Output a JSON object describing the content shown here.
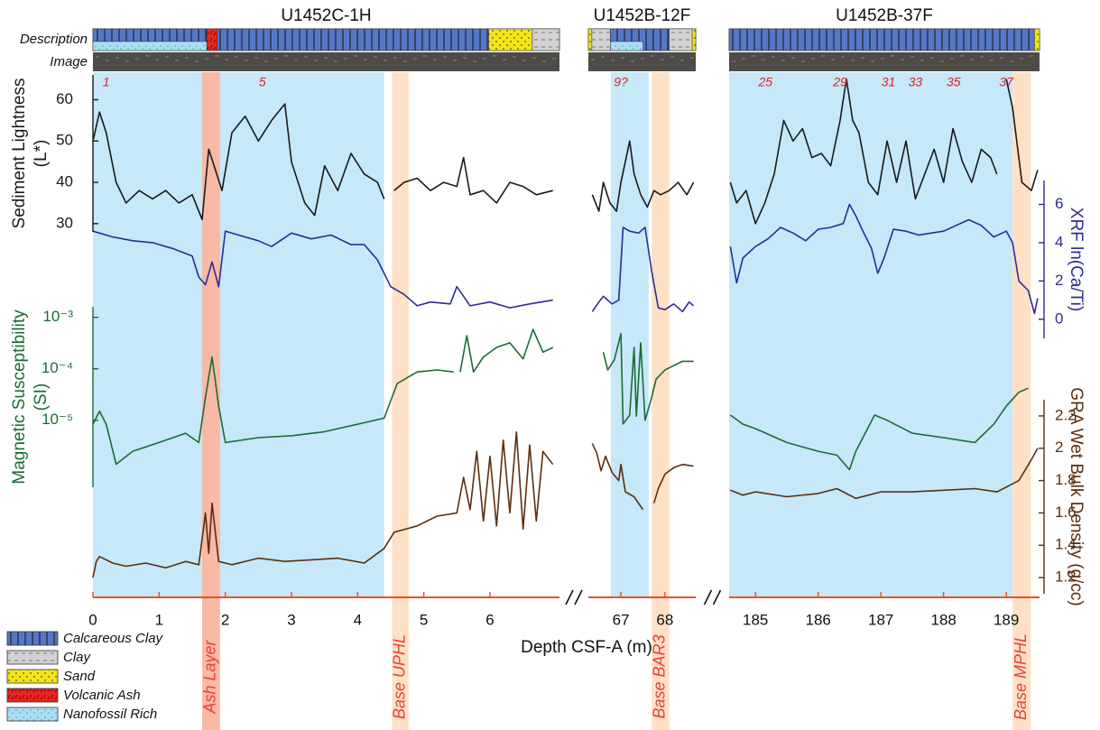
{
  "chart_data": {
    "type": "line",
    "x_label": "Depth CSF-A (m)",
    "strip_labels": [
      "Description",
      "Image"
    ],
    "segments": [
      {
        "title": "U1452C-1H",
        "xlim": [
          0,
          7.05
        ],
        "xticks": [
          0,
          1,
          2,
          3,
          4,
          5,
          6
        ]
      },
      {
        "title": "U1452B-12F",
        "xlim": [
          66.26,
          68.7
        ],
        "xticks": [
          67,
          68
        ]
      },
      {
        "title": "U1452B-37F",
        "xlim": [
          184.58,
          189.53
        ],
        "xticks": [
          185,
          186,
          187,
          188,
          189
        ]
      }
    ],
    "axes": [
      {
        "label": [
          "Sediment Lightness",
          "(L*)"
        ],
        "side": "left",
        "color": "#1a1a1a",
        "ylim": [
          28,
          66
        ],
        "yticks": [
          30,
          40,
          50,
          60
        ]
      },
      {
        "label": [
          "XRF ln(Ca/Ti)"
        ],
        "side": "right",
        "color": "#2b2d95",
        "ylim": [
          -1,
          7.25
        ],
        "yticks": [
          0,
          2,
          4,
          6
        ]
      },
      {
        "label": [
          "Magnetic Susceptibility",
          "(SI)"
        ],
        "side": "left",
        "color": "#1b6b35",
        "log": true,
        "ylim": [
          5e-07,
          0.0016
        ],
        "yticks": [
          {
            "value": 0.001,
            "label": "10⁻³"
          },
          {
            "value": 0.0001,
            "label": "10⁻⁴"
          },
          {
            "value": 1e-05,
            "label": "10⁻⁵"
          }
        ]
      },
      {
        "label": [
          "GRA Wet Bulk Density (g/cc)"
        ],
        "side": "right",
        "color": "#5a2e0f",
        "ylim": [
          1.1,
          2.3
        ],
        "yticks": [
          1.2,
          1.4,
          1.6,
          1.8,
          2,
          2.2
        ]
      }
    ],
    "series": [
      {
        "axis": 0,
        "segment": 0,
        "x": [
          0,
          0.1,
          0.2,
          0.35,
          0.5,
          0.7,
          0.9,
          1.1,
          1.3,
          1.5,
          1.65,
          1.75,
          1.85,
          1.95,
          2.1,
          2.3,
          2.5,
          2.7,
          2.9,
          3.0,
          3.2,
          3.35,
          3.5,
          3.7,
          3.9,
          4.1,
          4.3,
          4.4,
          4.45,
          4.55,
          4.7,
          4.9,
          5.1,
          5.3,
          5.5,
          5.6,
          5.7,
          5.9,
          6.1,
          6.3,
          6.5,
          6.7,
          6.95
        ],
        "values": [
          50,
          57,
          52,
          40,
          35,
          38,
          36,
          38,
          35,
          37,
          31,
          48,
          43,
          38,
          52,
          56,
          50,
          55,
          59,
          45,
          35,
          32,
          44,
          38,
          47,
          42,
          40,
          36,
          null,
          38,
          40,
          41,
          38,
          40,
          39,
          46,
          37,
          38,
          35,
          40,
          39,
          37,
          38
        ]
      },
      {
        "axis": 1,
        "segment": 0,
        "x": [
          0,
          0.3,
          0.6,
          0.9,
          1.2,
          1.5,
          1.6,
          1.7,
          1.8,
          1.9,
          2.0,
          2.2,
          2.5,
          2.7,
          3.0,
          3.3,
          3.6,
          3.9,
          4.1,
          4.3,
          4.5,
          4.7,
          4.9,
          5.1,
          5.4,
          5.5,
          5.7,
          6.0,
          6.3,
          6.6,
          6.95
        ],
        "values": [
          4.6,
          4.3,
          4.1,
          4.0,
          3.7,
          3.3,
          2.2,
          1.8,
          3.0,
          1.7,
          4.6,
          4.4,
          4.1,
          3.8,
          4.5,
          4.2,
          4.4,
          3.9,
          3.9,
          3.1,
          1.7,
          1.3,
          0.7,
          0.9,
          0.8,
          1.7,
          0.7,
          0.9,
          0.6,
          0.8,
          1.0
        ]
      },
      {
        "axis": 2,
        "segment": 0,
        "x": [
          0,
          0.1,
          0.2,
          0.35,
          0.6,
          1.0,
          1.4,
          1.6,
          1.7,
          1.8,
          1.9,
          2.0,
          2.5,
          3.0,
          3.5,
          4.0,
          4.4,
          4.6,
          4.9,
          5.2,
          5.45,
          5.5,
          5.55,
          5.65,
          5.75,
          5.9,
          6.1,
          6.3,
          6.5,
          6.65,
          6.8,
          6.95
        ],
        "values": [
          8.4e-06,
          1.5e-05,
          8.4e-06,
          1.4e-06,
          2.5e-06,
          3.7e-06,
          5.6e-06,
          3.7e-06,
          2.8e-05,
          0.00017,
          1.9e-05,
          3.7e-06,
          4.6e-06,
          5e-06,
          6e-06,
          8.4e-06,
          1.1e-05,
          5.2e-05,
          8.7e-05,
          9.5e-05,
          8.7e-05,
          null,
          8.7e-05,
          0.00044,
          8.7e-05,
          0.00017,
          0.00026,
          0.00032,
          0.000155,
          0.00058,
          0.00021,
          0.00026
        ]
      },
      {
        "axis": 3,
        "segment": 0,
        "x": [
          0,
          0.05,
          0.1,
          0.3,
          0.5,
          0.8,
          1.1,
          1.4,
          1.6,
          1.7,
          1.75,
          1.8,
          1.9,
          2.1,
          2.5,
          2.9,
          3.3,
          3.7,
          4.1,
          4.4,
          4.55,
          4.9,
          5.2,
          5.5,
          5.6,
          5.7,
          5.8,
          5.9,
          6.0,
          6.1,
          6.2,
          6.3,
          6.4,
          6.5,
          6.6,
          6.7,
          6.8,
          6.95
        ],
        "values": [
          1.2,
          1.3,
          1.33,
          1.29,
          1.27,
          1.29,
          1.26,
          1.3,
          1.28,
          1.6,
          1.35,
          1.66,
          1.3,
          1.28,
          1.32,
          1.3,
          1.31,
          1.32,
          1.29,
          1.38,
          1.48,
          1.52,
          1.58,
          1.6,
          1.82,
          1.62,
          1.98,
          1.55,
          1.95,
          1.52,
          2.05,
          1.6,
          2.1,
          1.5,
          2.02,
          1.55,
          1.98,
          1.9
        ]
      },
      {
        "axis": 0,
        "segment": 1,
        "x": [
          66.35,
          66.5,
          66.6,
          66.75,
          66.9,
          67.0,
          67.1,
          67.2,
          67.3,
          67.45,
          67.6,
          67.75,
          67.9,
          68.1,
          68.3,
          68.5,
          68.65
        ],
        "values": [
          37,
          33,
          40,
          35,
          33,
          40,
          45,
          50,
          42,
          37,
          34,
          38,
          37,
          38,
          40,
          37,
          40
        ]
      },
      {
        "axis": 1,
        "segment": 1,
        "x": [
          66.35,
          66.5,
          66.6,
          66.8,
          66.95,
          67.05,
          67.2,
          67.4,
          67.55,
          67.7,
          67.85,
          68.0,
          68.2,
          68.4,
          68.55,
          68.65
        ],
        "values": [
          0.4,
          0.9,
          1.2,
          0.8,
          1.0,
          4.8,
          4.6,
          4.5,
          4.8,
          2.5,
          0.6,
          0.5,
          0.8,
          0.4,
          0.9,
          0.7
        ]
      },
      {
        "axis": 2,
        "segment": 1,
        "x": [
          66.6,
          66.7,
          66.85,
          67.0,
          67.05,
          67.2,
          67.3,
          67.35,
          67.45,
          67.55,
          67.7,
          67.8,
          68.0,
          68.2,
          68.4,
          68.65
        ],
        "values": [
          0.00021,
          9.5e-05,
          0.00015,
          0.00048,
          8.5e-06,
          1.26e-05,
          0.00026,
          1.2e-05,
          0.00032,
          1e-05,
          2.8e-05,
          6.3e-05,
          9.5e-05,
          0.000115,
          0.00014,
          0.00014
        ]
      },
      {
        "axis": 3,
        "segment": 1,
        "x": [
          66.35,
          66.45,
          66.55,
          66.65,
          66.8,
          66.95,
          67.0,
          67.1,
          67.3,
          67.5,
          67.6,
          67.75,
          67.85,
          68.0,
          68.2,
          68.4,
          68.65
        ],
        "values": [
          2.03,
          1.97,
          1.86,
          1.95,
          1.85,
          1.8,
          1.9,
          1.73,
          1.7,
          1.62,
          null,
          1.66,
          1.75,
          1.84,
          1.88,
          1.9,
          1.89
        ]
      },
      {
        "axis": 0,
        "segment": 2,
        "x": [
          184.6,
          184.7,
          184.85,
          185.0,
          185.15,
          185.3,
          185.45,
          185.6,
          185.75,
          185.9,
          186.05,
          186.2,
          186.35,
          186.45,
          186.55,
          186.65,
          186.8,
          186.95,
          187.1,
          187.25,
          187.4,
          187.55,
          187.7,
          187.85,
          188.0,
          188.15,
          188.3,
          188.45,
          188.6,
          188.75,
          188.85,
          188.9,
          189.0,
          189.1,
          189.25,
          189.4,
          189.5
        ],
        "values": [
          40,
          35,
          38,
          30,
          35,
          42,
          55,
          50,
          53,
          46,
          47,
          44,
          55,
          65,
          55,
          52,
          40,
          37,
          50,
          40,
          50,
          36,
          42,
          48,
          40,
          53,
          45,
          40,
          48,
          46,
          42,
          null,
          65,
          58,
          40,
          38,
          43
        ]
      },
      {
        "axis": 1,
        "segment": 2,
        "x": [
          184.6,
          184.7,
          184.8,
          185.0,
          185.2,
          185.4,
          185.6,
          185.8,
          186.0,
          186.2,
          186.4,
          186.5,
          186.6,
          186.7,
          186.85,
          186.95,
          187.05,
          187.2,
          187.4,
          187.6,
          187.8,
          188.0,
          188.2,
          188.4,
          188.6,
          188.8,
          189.0,
          189.1,
          189.2,
          189.35,
          189.45,
          189.5
        ],
        "values": [
          3.8,
          1.9,
          3.2,
          3.8,
          4.2,
          4.8,
          4.5,
          4.1,
          4.7,
          4.8,
          5.0,
          6.0,
          5.4,
          4.7,
          3.7,
          2.4,
          3.2,
          4.7,
          4.6,
          4.4,
          4.5,
          4.6,
          4.9,
          5.2,
          4.9,
          4.3,
          4.6,
          4.0,
          2.0,
          1.5,
          0.3,
          1.1
        ]
      },
      {
        "axis": 2,
        "segment": 2,
        "x": [
          184.6,
          184.8,
          185.0,
          185.5,
          186.0,
          186.3,
          186.5,
          186.6,
          186.9,
          187.1,
          187.5,
          188.0,
          188.5,
          188.8,
          189.0,
          189.2,
          189.35
        ],
        "values": [
          1.26e-05,
          8.4e-06,
          6.9e-06,
          3.7e-06,
          2.5e-06,
          2.1e-06,
          1.1e-06,
          2.5e-06,
          1.26e-05,
          1e-05,
          5.6e-06,
          4.6e-06,
          3.7e-06,
          8.4e-06,
          1.9e-05,
          3.5e-05,
          4.2e-05
        ]
      },
      {
        "axis": 3,
        "segment": 2,
        "x": [
          184.6,
          184.8,
          185.0,
          185.5,
          186.0,
          186.3,
          186.6,
          187.0,
          187.5,
          188.0,
          188.5,
          188.85,
          189.0,
          189.2,
          189.4,
          189.5
        ],
        "values": [
          1.74,
          1.71,
          1.73,
          1.7,
          1.72,
          1.75,
          1.69,
          1.73,
          1.73,
          1.74,
          1.75,
          1.73,
          1.76,
          1.8,
          1.93,
          2.0
        ]
      }
    ],
    "shading": {
      "color": "#c6e8f9",
      "spans": [
        {
          "segment": 0,
          "range": [
            0,
            4.4
          ]
        },
        {
          "segment": 1,
          "range": [
            66.77,
            67.63
          ]
        },
        {
          "segment": 2,
          "range": [
            184.58,
            189.1
          ]
        }
      ]
    },
    "events": [
      {
        "label": "Ash Layer",
        "segment": 0,
        "range": [
          1.65,
          1.92
        ],
        "color": "#f8b9a5"
      },
      {
        "label": "Base UPHL",
        "segment": 0,
        "range": [
          4.52,
          4.77
        ],
        "color": "#fde0c6"
      },
      {
        "label": "Base BAR3",
        "segment": 1,
        "range": [
          67.7,
          68.1
        ],
        "color": "#fde0c6"
      },
      {
        "label": "Base MPHL",
        "segment": 2,
        "range": [
          189.1,
          189.39
        ],
        "color": "#fde0c6"
      }
    ],
    "annotations": [
      {
        "text": "1",
        "segment": 0,
        "x": 0.2
      },
      {
        "text": "5",
        "segment": 0,
        "x": 2.56
      },
      {
        "text": "9?",
        "segment": 1,
        "x": 67.0
      },
      {
        "text": "25",
        "segment": 2,
        "x": 185.16
      },
      {
        "text": "29",
        "segment": 2,
        "x": 186.35
      },
      {
        "text": "31",
        "segment": 2,
        "x": 187.12
      },
      {
        "text": "33",
        "segment": 2,
        "x": 187.55
      },
      {
        "text": "35",
        "segment": 2,
        "x": 188.16
      },
      {
        "text": "37",
        "segment": 2,
        "x": 189.0
      }
    ],
    "lithology_legend": [
      {
        "name": "Calcareous Clay",
        "color": "#5677c6"
      },
      {
        "name": "Clay",
        "color": "#d2d2d2"
      },
      {
        "name": "Sand",
        "color": "#f4e41c"
      },
      {
        "name": "Volcanic Ash",
        "color": "#e52620"
      },
      {
        "name": "Nanofossil Rich",
        "color": "#a9def3",
        "overlay": true
      }
    ],
    "lithology": [
      {
        "segment": 0,
        "range": [
          0,
          1.72
        ],
        "type": 0
      },
      {
        "segment": 0,
        "range": [
          0,
          1.72
        ],
        "type": 4
      },
      {
        "segment": 0,
        "range": [
          1.72,
          1.88
        ],
        "type": 3
      },
      {
        "segment": 0,
        "range": [
          1.88,
          5.98
        ],
        "type": 0
      },
      {
        "segment": 0,
        "range": [
          5.98,
          6.64
        ],
        "type": 2
      },
      {
        "segment": 0,
        "range": [
          6.64,
          7.05
        ],
        "type": 1
      },
      {
        "segment": 1,
        "range": [
          66.26,
          66.34
        ],
        "type": 2
      },
      {
        "segment": 1,
        "range": [
          66.34,
          66.76
        ],
        "type": 1
      },
      {
        "segment": 1,
        "range": [
          66.76,
          68.1
        ],
        "type": 0
      },
      {
        "segment": 1,
        "range": [
          66.76,
          67.5
        ],
        "type": 4
      },
      {
        "segment": 1,
        "range": [
          68.1,
          68.62
        ],
        "type": 1
      },
      {
        "segment": 1,
        "range": [
          68.62,
          68.7
        ],
        "type": 2
      },
      {
        "segment": 2,
        "range": [
          184.58,
          189.45
        ],
        "type": 0
      },
      {
        "segment": 2,
        "range": [
          189.45,
          189.53
        ],
        "type": 2
      }
    ]
  }
}
